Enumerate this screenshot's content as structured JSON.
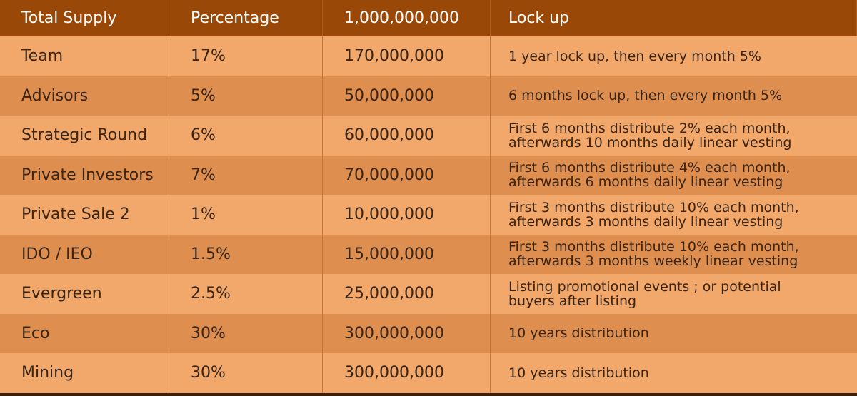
{
  "table": {
    "header": [
      "Total Supply",
      "Percentage",
      "1,000,000,000",
      "Lock up"
    ],
    "rows": [
      [
        "Team",
        "17%",
        "170,000,000",
        [
          "1 year lock up, then every month 5%"
        ]
      ],
      [
        "Advisors",
        "5%",
        "50,000,000",
        [
          "6 months lock up, then every month 5%"
        ]
      ],
      [
        "Strategic Round",
        "6%",
        "60,000,000",
        [
          "First 6 months distribute 2% each month,",
          "afterwards 10 months daily linear vesting"
        ]
      ],
      [
        "Private Investors",
        "7%",
        "70,000,000",
        [
          "First 6 months distribute 4% each month,",
          "afterwards 6 months daily linear vesting"
        ]
      ],
      [
        "Private Sale 2",
        "1%",
        "10,000,000",
        [
          "First 3 months distribute 10% each month,",
          "afterwards 3 months daily linear vesting"
        ]
      ],
      [
        "IDO / IEO",
        "1.5%",
        "15,000,000",
        [
          "First 3 months distribute 10% each month,",
          "afterwards 3 months weekly linear vesting"
        ]
      ],
      [
        "Evergreen",
        "2.5%",
        "25,000,000",
        [
          "Listing promotional events ; or potential",
          "buyers after listing"
        ]
      ],
      [
        "Eco",
        "30%",
        "300,000,000",
        [
          "10 years distribution"
        ]
      ],
      [
        "Mining",
        "30%",
        "300,000,000",
        [
          "10 years distribution"
        ]
      ]
    ]
  }
}
